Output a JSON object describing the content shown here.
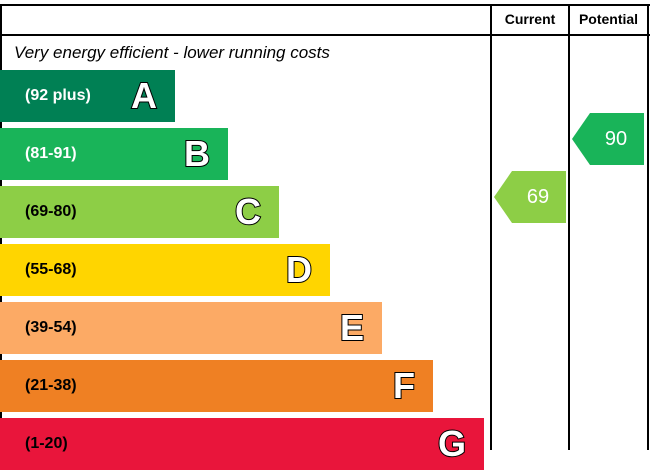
{
  "chart_data": {
    "type": "bar",
    "subtitle": "Very energy efficient - lower running costs",
    "columns": [
      "Current",
      "Potential"
    ],
    "bands": [
      {
        "letter": "A",
        "range": "(92 plus)",
        "min": 92,
        "max": 100,
        "color": "#008054",
        "text_color": "#ffffff"
      },
      {
        "letter": "B",
        "range": "(81-91)",
        "min": 81,
        "max": 91,
        "color": "#19b459",
        "text_color": "#ffffff"
      },
      {
        "letter": "C",
        "range": "(69-80)",
        "min": 69,
        "max": 80,
        "color": "#8dce46",
        "text_color": "#000000"
      },
      {
        "letter": "D",
        "range": "(55-68)",
        "min": 55,
        "max": 68,
        "color": "#ffd500",
        "text_color": "#000000"
      },
      {
        "letter": "E",
        "range": "(39-54)",
        "min": 39,
        "max": 54,
        "color": "#fcaa65",
        "text_color": "#000000"
      },
      {
        "letter": "F",
        "range": "(21-38)",
        "min": 21,
        "max": 38,
        "color": "#ef8023",
        "text_color": "#000000"
      },
      {
        "letter": "G",
        "range": "(1-20)",
        "min": 1,
        "max": 20,
        "color": "#e9153b",
        "text_color": "#000000"
      }
    ],
    "current": {
      "value": 69,
      "band": "C",
      "color": "#8dce46"
    },
    "potential": {
      "value": 90,
      "band": "B",
      "color": "#19b459"
    }
  }
}
